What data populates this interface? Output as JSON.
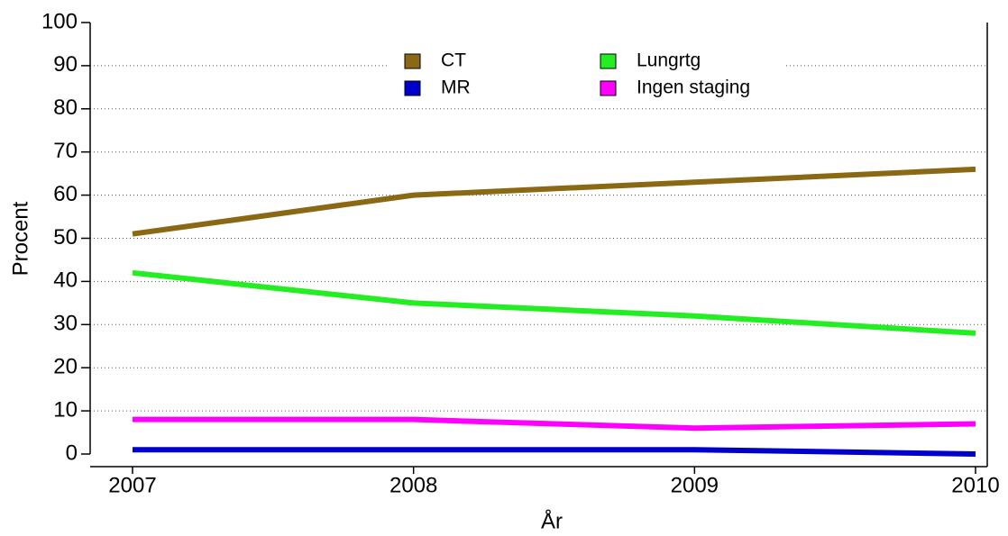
{
  "chart_data": {
    "type": "line",
    "x_label": "År",
    "y_label": "Procent",
    "categories": [
      "2007",
      "2008",
      "2009",
      "2010"
    ],
    "series": [
      {
        "name": "CT",
        "color": "#8b6914",
        "values": [
          51,
          60,
          63,
          66
        ]
      },
      {
        "name": "MR",
        "color": "#0000cc",
        "values": [
          1,
          1,
          1,
          0
        ]
      },
      {
        "name": "Lungrtg",
        "color": "#22ee22",
        "values": [
          42,
          35,
          32,
          28
        ]
      },
      {
        "name": "Ingen staging",
        "color": "#ff00ff",
        "values": [
          8,
          8,
          6,
          7
        ]
      }
    ],
    "ylim": [
      0,
      100
    ],
    "yticks": [
      0,
      10,
      20,
      30,
      40,
      50,
      60,
      70,
      80,
      90,
      100
    ],
    "grid": true
  }
}
